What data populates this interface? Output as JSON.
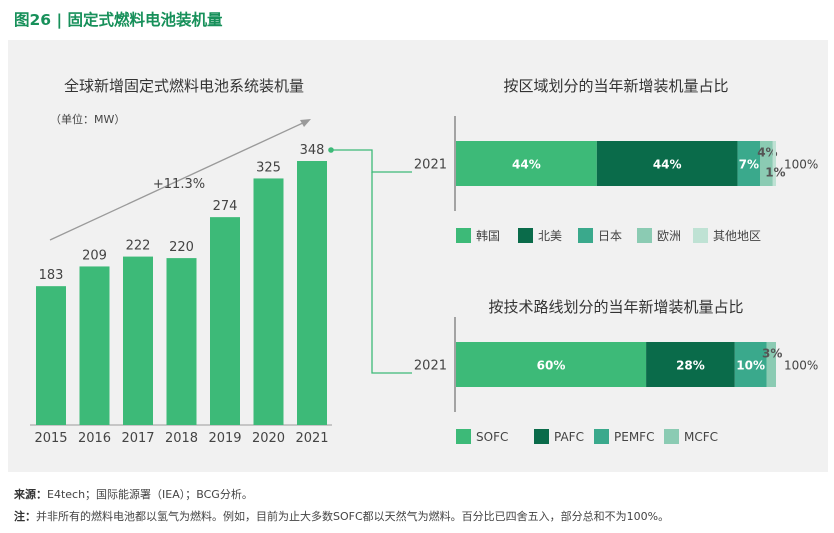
{
  "figure_title": "图26 | 固定式燃料电池装机量",
  "footer": {
    "source_label": "来源：",
    "source_text": "E4tech；国际能源署（IEA）；BCG分析。",
    "note_label": "注：",
    "note_text": "并非所有的燃料电池都以氢气为燃料。例如，目前为止大多数SOFC都以天然气为燃料。百分比已四舍五入，部分总和不为100%。"
  },
  "colors": {
    "title_green": "#17905a",
    "bar_green": "#3dba78",
    "dark_green": "#0a6b4a",
    "mid_teal": "#3aa98c",
    "light_teal": "#8bcbb3",
    "pale_teal": "#bfe2d4"
  },
  "chart_data": [
    {
      "type": "bar",
      "title": "全球新增固定式燃料电池系统装机量",
      "subtitle": "（单位：MW）",
      "categories": [
        "2015",
        "2016",
        "2017",
        "2018",
        "2019",
        "2020",
        "2021"
      ],
      "values": [
        183,
        209,
        222,
        220,
        274,
        325,
        348
      ],
      "annotation": "+11.3%",
      "ylim": [
        0,
        348
      ],
      "grid": false
    },
    {
      "type": "bar",
      "orientation": "horizontal-stacked",
      "title": "按区域划分的当年新增装机量占比",
      "category": "2021",
      "total_label": "100%",
      "legend_position": "bottom",
      "series": [
        {
          "name": "韩国",
          "value": 44,
          "label": "44%",
          "color": "#3dba78"
        },
        {
          "name": "北美",
          "value": 44,
          "label": "44%",
          "color": "#0a6b4a"
        },
        {
          "name": "日本",
          "value": 7,
          "label": "7%",
          "color": "#3aa98c"
        },
        {
          "name": "欧洲",
          "value": 4,
          "label": "4%",
          "color": "#8bcbb3"
        },
        {
          "name": "其他地区",
          "value": 1,
          "label": "1%",
          "color": "#bfe2d4"
        }
      ]
    },
    {
      "type": "bar",
      "orientation": "horizontal-stacked",
      "title": "按技术路线划分的当年新增装机量占比",
      "category": "2021",
      "total_label": "100%",
      "legend_position": "bottom",
      "series": [
        {
          "name": "SOFC",
          "value": 60,
          "label": "60%",
          "color": "#3dba78"
        },
        {
          "name": "PAFC",
          "value": 28,
          "label": "28%",
          "color": "#0a6b4a"
        },
        {
          "name": "PEMFC",
          "value": 10,
          "label": "10%",
          "color": "#3aa98c"
        },
        {
          "name": "MCFC",
          "value": 3,
          "label": "3%",
          "color": "#8bcbb3"
        }
      ]
    }
  ]
}
